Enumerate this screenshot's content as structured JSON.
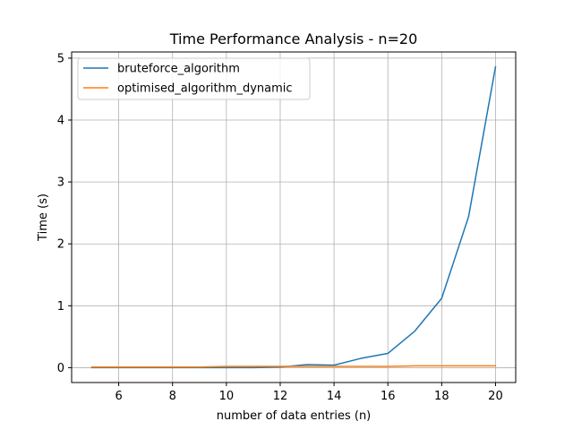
{
  "chart_data": {
    "type": "line",
    "title": "Time Performance Analysis - n=20",
    "xlabel": "number of data entries (n)",
    "ylabel": "Time (s)",
    "xlim": [
      4.25,
      20.75
    ],
    "ylim": [
      -0.24,
      5.1
    ],
    "xticks": [
      6,
      8,
      10,
      12,
      14,
      16,
      18,
      20
    ],
    "yticks": [
      0,
      1,
      2,
      3,
      4,
      5
    ],
    "grid": true,
    "legend_position": "top-left",
    "x": [
      5,
      6,
      7,
      8,
      9,
      10,
      11,
      12,
      13,
      14,
      15,
      16,
      17,
      18,
      19,
      20
    ],
    "series": [
      {
        "name": "bruteforce_algorithm",
        "color": "#1f77b4",
        "values": [
          0.0,
          0.0,
          0.0,
          0.0,
          0.0,
          0.0,
          0.0,
          0.01,
          0.05,
          0.04,
          0.15,
          0.23,
          0.59,
          1.12,
          2.44,
          4.86
        ]
      },
      {
        "name": "optimised_algorithm_dynamic",
        "color": "#ff7f0e",
        "values": [
          0.01,
          0.01,
          0.01,
          0.01,
          0.01,
          0.02,
          0.02,
          0.02,
          0.02,
          0.02,
          0.02,
          0.02,
          0.03,
          0.03,
          0.03,
          0.03
        ]
      }
    ]
  }
}
